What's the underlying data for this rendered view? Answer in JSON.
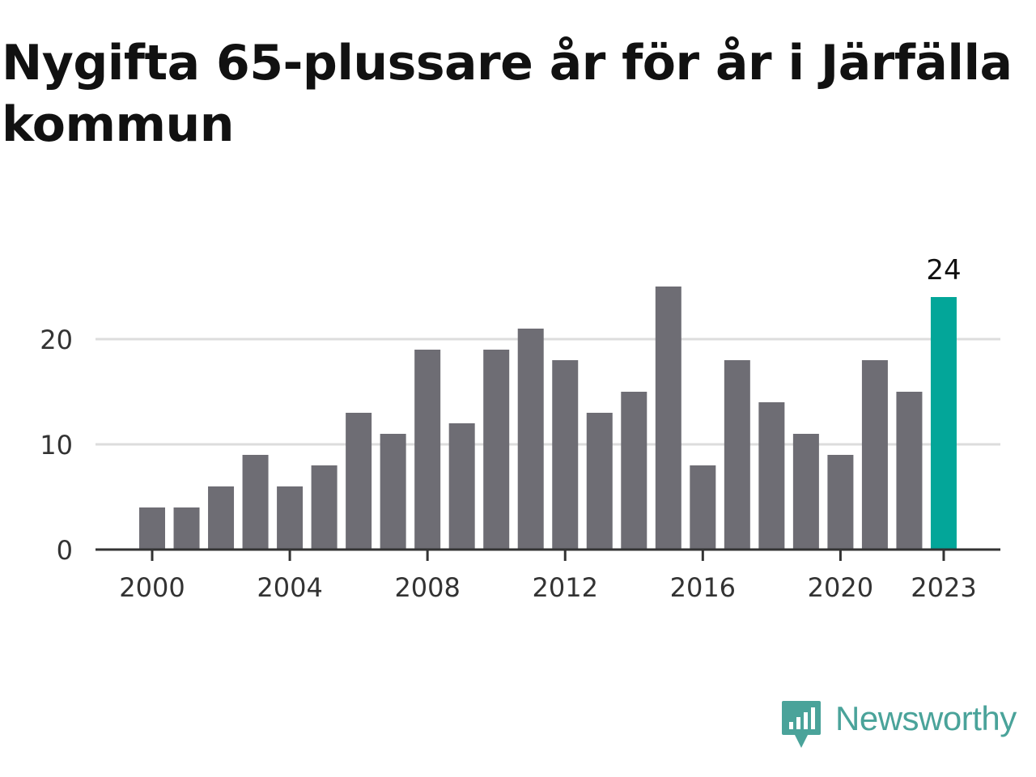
{
  "title": "Nygifta 65-plussare år för år i Järfälla kommun",
  "chart_data": {
    "type": "bar",
    "title": "Nygifta 65-plussare år för år i Järfälla kommun",
    "categories": [
      2000,
      2001,
      2002,
      2003,
      2004,
      2005,
      2006,
      2007,
      2008,
      2009,
      2010,
      2011,
      2012,
      2013,
      2014,
      2015,
      2016,
      2017,
      2018,
      2019,
      2020,
      2021,
      2022,
      2023
    ],
    "values": [
      4,
      4,
      6,
      9,
      6,
      8,
      13,
      11,
      19,
      12,
      19,
      21,
      18,
      13,
      15,
      25,
      8,
      18,
      14,
      11,
      9,
      18,
      15,
      24
    ],
    "x_ticks": [
      "2000",
      "2004",
      "2008",
      "2012",
      "2016",
      "2020",
      "2023"
    ],
    "y_ticks": [
      "0",
      "10",
      "20"
    ],
    "ylim": [
      0,
      26
    ],
    "grid": true,
    "highlight": {
      "category": 2023,
      "label": "24"
    },
    "colors": {
      "bar": "#6e6d74",
      "highlight": "#03a699",
      "grid": "#dddddd",
      "axis": "#333333",
      "tick_text": "#333333"
    }
  },
  "brand": {
    "name": "Newsworthy",
    "icon": "newsworthy-logo-icon",
    "color": "#4aa39a"
  }
}
